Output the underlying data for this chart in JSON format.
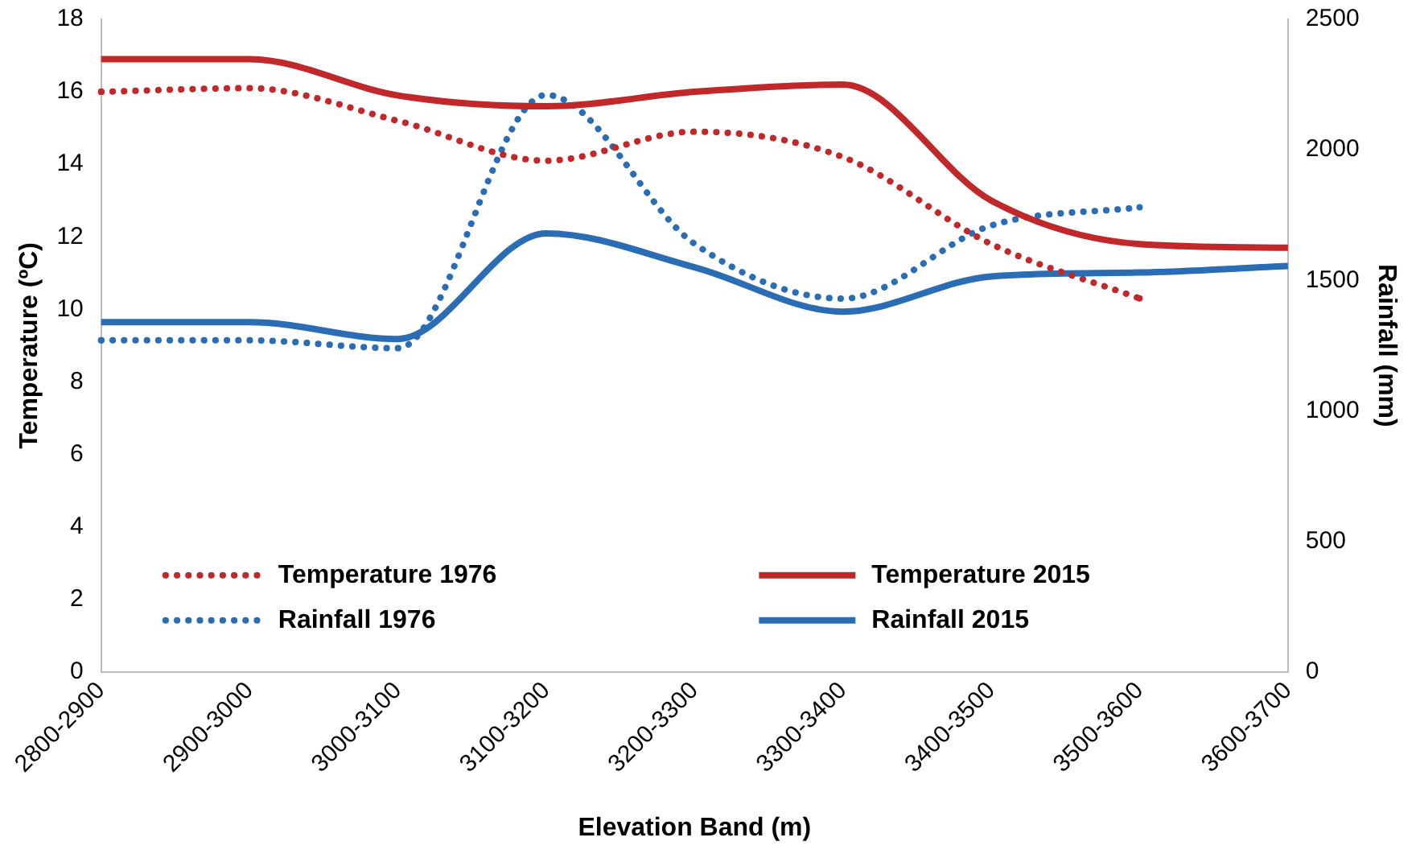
{
  "chart_data": {
    "type": "line",
    "xlabel": "Elevation Band (m)",
    "ylabel": "Temperature (ºC)",
    "y2label": "Rainfall (mm)",
    "categories": [
      "2800-2900",
      "2900-3000",
      "3000-3100",
      "3100-3200",
      "3200-3300",
      "3300-3400",
      "3400-3500",
      "3500-3600",
      "3600-3700"
    ],
    "series": [
      {
        "name": "Temperature 1976",
        "color": "#c0282a",
        "line_style": "dotted",
        "values": [
          16.0,
          16.1,
          15.2,
          14.1,
          14.9,
          14.2,
          11.8,
          10.3,
          null
        ]
      },
      {
        "name": "Temperature 2015",
        "color": "#c0282a",
        "line_style": "solid",
        "values": [
          16.9,
          16.9,
          15.9,
          15.6,
          16.0,
          16.2,
          13.0,
          11.8,
          11.7
        ]
      },
      {
        "name": "Rainfall 1976",
        "color": "#2a6db5",
        "line_style": "dotted",
        "axis": "y2",
        "values": [
          1270,
          1270,
          1240,
          2210,
          1640,
          1430,
          1710,
          1780,
          null
        ]
      },
      {
        "name": "Rainfall 2015",
        "color": "#2a6db5",
        "line_style": "solid",
        "axis": "y2",
        "values": [
          1340,
          1340,
          1275,
          1680,
          1550,
          1380,
          1515,
          1530,
          1555
        ]
      }
    ],
    "ylim": [
      0,
      18
    ],
    "yticks": [
      0,
      2,
      4,
      6,
      8,
      10,
      12,
      14,
      16,
      18
    ],
    "y2lim": [
      0,
      2500
    ],
    "y2ticks": [
      0,
      500,
      1000,
      1500,
      2000,
      2500
    ],
    "grid": false,
    "legend": "bottom",
    "marker": "none"
  }
}
